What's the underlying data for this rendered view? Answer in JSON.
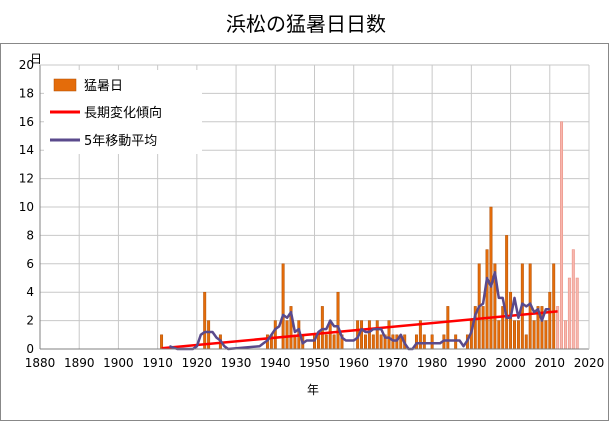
{
  "chart_data": {
    "type": "bar",
    "title": "浜松の猛暑日日数",
    "xlabel": "年",
    "ylabel": "日",
    "xlim": [
      1880,
      2020
    ],
    "ylim": [
      0,
      20
    ],
    "xticks": [
      1880,
      1890,
      1900,
      1910,
      1920,
      1930,
      1940,
      1950,
      1960,
      1970,
      1980,
      1990,
      2000,
      2010,
      2020
    ],
    "yticks": [
      0,
      2,
      4,
      6,
      8,
      10,
      12,
      14,
      16,
      18,
      20
    ],
    "grid": true,
    "legend_position": "top-left",
    "colors": {
      "bar": "#e46c0a",
      "bar_light": "#f7b7ae",
      "trend": "#ff0000",
      "moving_average": "#5a4a8c"
    },
    "series": [
      {
        "name": "猛暑日",
        "kind": "bar",
        "x": [
          1911,
          1922,
          1923,
          1926,
          1938,
          1939,
          1940,
          1942,
          1943,
          1944,
          1945,
          1946,
          1947,
          1950,
          1951,
          1952,
          1953,
          1954,
          1955,
          1956,
          1957,
          1961,
          1962,
          1963,
          1964,
          1965,
          1966,
          1967,
          1968,
          1969,
          1970,
          1971,
          1972,
          1973,
          1976,
          1977,
          1978,
          1980,
          1983,
          1984,
          1986,
          1989,
          1990,
          1991,
          1992,
          1993,
          1994,
          1995,
          1996,
          1997,
          1998,
          1999,
          2000,
          2001,
          2002,
          2003,
          2004,
          2005,
          2006,
          2007,
          2008,
          2009,
          2010,
          2011,
          2012,
          2013,
          2014,
          2015,
          2016,
          2017
        ],
        "values": [
          1,
          4,
          2,
          1,
          1,
          1,
          2,
          6,
          2,
          3,
          1,
          2,
          1,
          1,
          1,
          3,
          1,
          2,
          1,
          4,
          1,
          2,
          2,
          1,
          2,
          1,
          2,
          1,
          1,
          2,
          1,
          1,
          1,
          1,
          1,
          2,
          1,
          1,
          1,
          3,
          1,
          1,
          2,
          3,
          6,
          3,
          7,
          10,
          6,
          2,
          3,
          8,
          4,
          2,
          2,
          6,
          1,
          6,
          2,
          3,
          3,
          2,
          4,
          6,
          3,
          16,
          2,
          5,
          7,
          5
        ],
        "light_from_year": 2012
      },
      {
        "name": "長期変化傾向",
        "kind": "line",
        "x": [
          1911,
          2012
        ],
        "values": [
          0.05,
          2.65
        ]
      },
      {
        "name": "5年移動平均",
        "kind": "line",
        "x": [
          1913,
          1915,
          1917,
          1919,
          1920,
          1921,
          1922,
          1923,
          1924,
          1925,
          1926,
          1927,
          1928,
          1936,
          1937,
          1938,
          1939,
          1940,
          1941,
          1942,
          1943,
          1944,
          1945,
          1946,
          1947,
          1948,
          1949,
          1950,
          1951,
          1952,
          1953,
          1954,
          1955,
          1956,
          1957,
          1958,
          1959,
          1960,
          1961,
          1962,
          1963,
          1964,
          1965,
          1966,
          1967,
          1968,
          1969,
          1970,
          1971,
          1972,
          1973,
          1974,
          1975,
          1976,
          1977,
          1978,
          1979,
          1980,
          1981,
          1982,
          1983,
          1984,
          1985,
          1986,
          1987,
          1988,
          1989,
          1990,
          1991,
          1992,
          1993,
          1994,
          1995,
          1996,
          1997,
          1998,
          1999,
          2000,
          2001,
          2002,
          2003,
          2004,
          2005,
          2006,
          2007,
          2008,
          2009,
          2010
        ],
        "values": [
          0.2,
          0,
          0,
          0,
          0.2,
          1.0,
          1.2,
          1.2,
          1.2,
          0.8,
          0.6,
          0.2,
          0,
          0.2,
          0.4,
          0.6,
          1.0,
          1.4,
          1.6,
          2.4,
          2.2,
          2.6,
          1.2,
          1.4,
          0.4,
          0.6,
          0.6,
          0.6,
          1.2,
          1.4,
          1.4,
          2.0,
          1.6,
          1.6,
          0.8,
          0.6,
          0.6,
          0.6,
          0.8,
          1.4,
          1.2,
          1.2,
          1.4,
          1.4,
          1.4,
          0.8,
          0.8,
          0.6,
          0.6,
          1.0,
          0.4,
          0,
          0,
          0.4,
          0.4,
          0.4,
          0.4,
          0.4,
          0.4,
          0.4,
          0.6,
          0.6,
          0.6,
          0.6,
          0.6,
          0.2,
          0.6,
          1.2,
          2.4,
          3.0,
          3.2,
          5.0,
          4.4,
          5.4,
          3.6,
          3.6,
          2.2,
          2.2,
          3.6,
          2.2,
          3.2,
          3.0,
          3.2,
          2.6,
          2.8,
          2.0,
          2.8,
          2.8
        ]
      }
    ]
  }
}
